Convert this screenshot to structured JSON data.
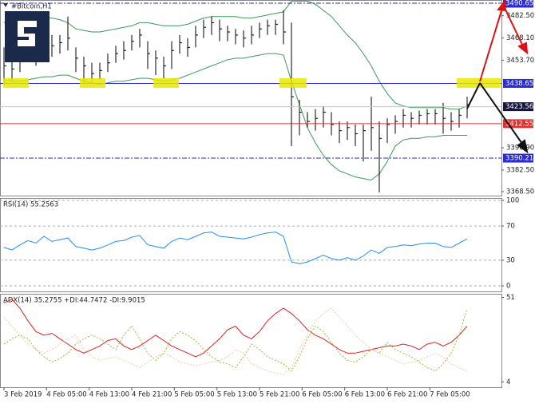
{
  "chart_data": [
    {
      "type": "ohlc",
      "title": "#Bitcoin,H1",
      "ylim": [
        3365.9,
        3492.72
      ],
      "yticks": [
        {
          "value": 3482.5,
          "label": "3482.50"
        },
        {
          "value": 3468.1,
          "label": "3468.10"
        },
        {
          "value": 3453.7,
          "label": "3453.70"
        },
        {
          "value": 3396.9,
          "label": "3396.90"
        },
        {
          "value": 3382.5,
          "label": "3382.50"
        },
        {
          "value": 3368.5,
          "label": "3368.50"
        }
      ],
      "color": "#000000",
      "high": [
        3462,
        3455,
        3462,
        3468,
        3466,
        3476,
        3470,
        3470,
        3482,
        3462,
        3456,
        3452,
        3452,
        3458,
        3463,
        3466,
        3470,
        3474,
        3466,
        3460,
        3456,
        3466,
        3470,
        3468,
        3476,
        3480,
        3482,
        3480,
        3476,
        3474,
        3473,
        3476,
        3478,
        3480,
        3480,
        3486,
        3478,
        3428,
        3420,
        3422,
        3424,
        3420,
        3414,
        3414,
        3412,
        3412,
        3430,
        3414,
        3416,
        3418,
        3422,
        3420,
        3421,
        3422,
        3422,
        3426,
        3420,
        3422,
        3430
      ],
      "low": [
        3438,
        3440,
        3446,
        3455,
        3450,
        3460,
        3456,
        3458,
        3460,
        3446,
        3440,
        3440,
        3441,
        3446,
        3452,
        3454,
        3460,
        3462,
        3448,
        3444,
        3442,
        3448,
        3458,
        3456,
        3462,
        3468,
        3470,
        3466,
        3466,
        3464,
        3462,
        3464,
        3468,
        3470,
        3470,
        3464,
        3398,
        3405,
        3410,
        3408,
        3410,
        3405,
        3400,
        3402,
        3398,
        3388,
        3395,
        3368,
        3400,
        3406,
        3410,
        3410,
        3412,
        3412,
        3412,
        3406,
        3408,
        3410,
        3416
      ],
      "close": [
        3450,
        3448,
        3455,
        3462,
        3458,
        3470,
        3463,
        3465,
        3468,
        3455,
        3450,
        3445,
        3447,
        3452,
        3458,
        3460,
        3466,
        3470,
        3458,
        3455,
        3450,
        3460,
        3465,
        3462,
        3470,
        3475,
        3478,
        3474,
        3472,
        3470,
        3468,
        3470,
        3474,
        3476,
        3477,
        3472,
        3430,
        3420,
        3414,
        3416,
        3420,
        3412,
        3408,
        3410,
        3406,
        3408,
        3410,
        3403,
        3412,
        3414,
        3418,
        3416,
        3418,
        3419,
        3419,
        3416,
        3414,
        3418,
        3425
      ],
      "bands": {
        "color": "#3a9a5a",
        "upper": [
          3478,
          3478,
          3479,
          3480,
          3480,
          3481,
          3481,
          3480,
          3478,
          3474,
          3473,
          3472,
          3472,
          3473,
          3474,
          3475,
          3476,
          3478,
          3478,
          3477,
          3476,
          3476,
          3476,
          3477,
          3479,
          3481,
          3482,
          3482,
          3482,
          3482,
          3481,
          3481,
          3482,
          3483,
          3484,
          3485,
          3492,
          3492,
          3492,
          3490,
          3486,
          3482,
          3476,
          3470,
          3465,
          3458,
          3450,
          3440,
          3432,
          3426,
          3424,
          3423,
          3423,
          3423,
          3423,
          3423,
          3422,
          3422,
          3424
        ],
        "lower": [
          3441,
          3440,
          3440,
          3441,
          3442,
          3443,
          3443,
          3444,
          3444,
          3442,
          3440,
          3439,
          3438,
          3439,
          3440,
          3440,
          3441,
          3442,
          3442,
          3441,
          3440,
          3441,
          3442,
          3444,
          3446,
          3448,
          3450,
          3452,
          3454,
          3455,
          3455,
          3456,
          3457,
          3458,
          3458,
          3457,
          3440,
          3425,
          3410,
          3400,
          3392,
          3386,
          3382,
          3380,
          3378,
          3377,
          3376,
          3380,
          3388,
          3398,
          3402,
          3403,
          3403,
          3404,
          3404,
          3405,
          3405,
          3405,
          3405
        ]
      },
      "levels": [
        {
          "value": 3490.65,
          "color": "#2b2bd6",
          "style": "dashdot",
          "box": "#2b2bd6"
        },
        {
          "value": 3438.65,
          "color": "#2b2bd6",
          "style": "solid",
          "box": "#2b2bd6"
        },
        {
          "value": 3423.56,
          "color": "#c8c8c8",
          "style": "solid",
          "box": "#16163a"
        },
        {
          "value": 3412.55,
          "color": "#e03030",
          "style": "solid",
          "box": "#e03030"
        },
        {
          "value": 3390.21,
          "color": "#2b2bd6",
          "style": "dashdot",
          "box": "#2b2bd6"
        }
      ]
    },
    {
      "type": "line",
      "title": "RSI(14) 55.2563",
      "ylim": [
        -6.5,
        102.8
      ],
      "yticks": [
        100,
        70,
        30,
        0
      ],
      "grid": true,
      "series": [
        {
          "color": "#1e8fff",
          "style": "solid",
          "values": [
            45,
            42,
            48,
            53,
            50,
            58,
            52,
            54,
            56,
            46,
            44,
            42,
            44,
            48,
            52,
            53,
            57,
            59,
            48,
            46,
            44,
            52,
            56,
            54,
            58,
            62,
            63,
            58,
            57,
            56,
            55,
            57,
            60,
            62,
            63,
            58,
            28,
            26,
            28,
            32,
            36,
            32,
            30,
            33,
            30,
            35,
            42,
            38,
            45,
            46,
            48,
            47,
            49,
            50,
            50,
            46,
            45,
            50,
            55
          ]
        }
      ]
    },
    {
      "type": "line",
      "title": "ADX(14) 35.2755 +DI:44.7472 -DI:9.9015",
      "ylim": [
        1,
        53
      ],
      "yticks": [
        51,
        4
      ],
      "grid": false,
      "series": [
        {
          "color": "#e02020",
          "style": "solid",
          "values": [
            48,
            50,
            45,
            38,
            32,
            30,
            31,
            28,
            25,
            22,
            20,
            22,
            24,
            27,
            28,
            24,
            22,
            24,
            27,
            30,
            27,
            24,
            22,
            20,
            18,
            20,
            24,
            28,
            33,
            35,
            30,
            28,
            32,
            38,
            42,
            45,
            42,
            38,
            33,
            30,
            28,
            25,
            22,
            20,
            20,
            21,
            22,
            23,
            24,
            24,
            25,
            24,
            22,
            25,
            26,
            24,
            26,
            30,
            35
          ]
        },
        {
          "color": "#b0b030",
          "style": "dotted",
          "values": [
            25,
            28,
            30,
            28,
            22,
            18,
            15,
            17,
            20,
            25,
            28,
            30,
            28,
            25,
            22,
            30,
            35,
            28,
            20,
            16,
            20,
            28,
            32,
            30,
            27,
            22,
            18,
            15,
            14,
            12,
            18,
            25,
            22,
            18,
            16,
            14,
            10,
            18,
            28,
            35,
            32,
            26,
            20,
            16,
            15,
            18,
            22,
            20,
            26,
            22,
            20,
            18,
            15,
            12,
            10,
            14,
            20,
            30,
            44.7
          ]
        },
        {
          "color": "#f0c8a8",
          "style": "dotted",
          "values": [
            40,
            35,
            30,
            25,
            22,
            20,
            22,
            25,
            28,
            30,
            22,
            18,
            16,
            17,
            18,
            16,
            14,
            12,
            15,
            18,
            20,
            18,
            15,
            14,
            13,
            14,
            15,
            16,
            18,
            22,
            20,
            14,
            12,
            10,
            9,
            8,
            12,
            22,
            30,
            38,
            42,
            45,
            40,
            35,
            30,
            26,
            22,
            20,
            18,
            16,
            14,
            15,
            16,
            18,
            20,
            18,
            14,
            12,
            9.9
          ]
        }
      ],
      "xticks": [
        {
          "value": 0,
          "label": "3 Feb 2019"
        },
        {
          "value": 5.33,
          "label": "4 Feb 05:00"
        },
        {
          "value": 10.67,
          "label": "4 Feb 13:00"
        },
        {
          "value": 16,
          "label": "4 Feb 21:00"
        },
        {
          "value": 21.33,
          "label": "5 Feb 05:00"
        },
        {
          "value": 26.67,
          "label": "5 Feb 13:00"
        },
        {
          "value": 32,
          "label": "5 Feb 21:00"
        },
        {
          "value": 37.33,
          "label": "6 Feb 05:00"
        },
        {
          "value": 42.67,
          "label": "6 Feb 13:00"
        },
        {
          "value": 48,
          "label": "6 Feb 21:00"
        },
        {
          "value": 53.33,
          "label": "7 Feb 05:00"
        }
      ]
    }
  ]
}
